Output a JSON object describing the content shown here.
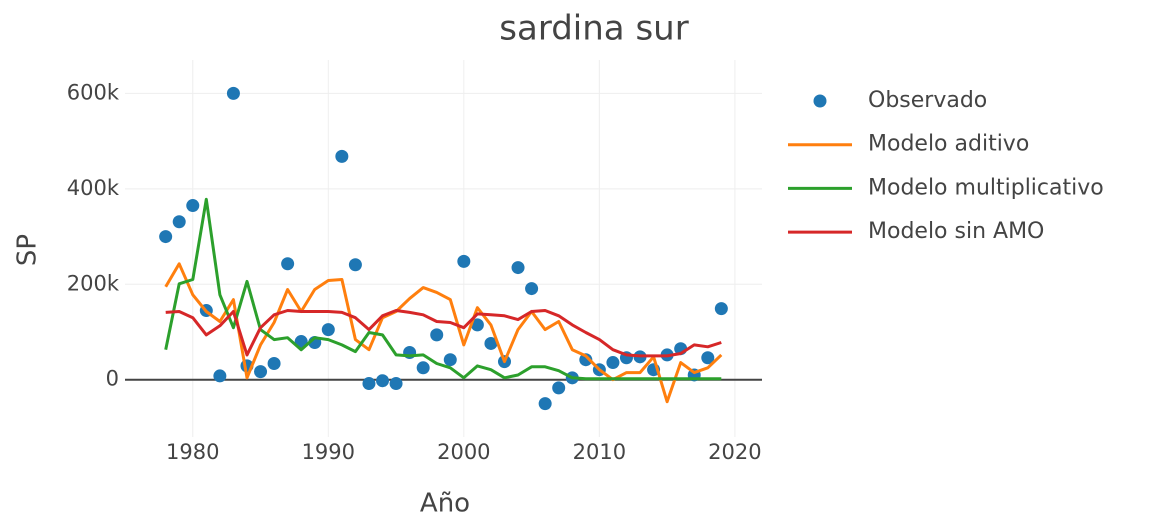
{
  "chart_data": {
    "type": "line",
    "title": "sardina sur",
    "x_label": "Año",
    "y_label": "SP",
    "x": [
      1978,
      1979,
      1980,
      1981,
      1982,
      1983,
      1984,
      1985,
      1986,
      1987,
      1988,
      1989,
      1990,
      1991,
      1992,
      1993,
      1994,
      1995,
      1996,
      1997,
      1998,
      1999,
      2000,
      2001,
      2002,
      2003,
      2004,
      2005,
      2006,
      2007,
      2008,
      2009,
      2010,
      2011,
      2012,
      2013,
      2014,
      2015,
      2016,
      2017,
      2018,
      2019
    ],
    "series": [
      {
        "name": "Observado",
        "color": "#1f77b4",
        "mode": "markers",
        "values": [
          300000,
          331000,
          365000,
          145000,
          8000,
          600000,
          29000,
          17000,
          34000,
          243000,
          80000,
          78000,
          105000,
          468000,
          241000,
          -8000,
          -2000,
          -8000,
          57000,
          25000,
          94000,
          42000,
          248000,
          115000,
          76000,
          38000,
          235000,
          191000,
          -50000,
          -17000,
          4000,
          42000,
          21000,
          36000,
          46000,
          48000,
          21000,
          52000,
          65000,
          10000,
          46000,
          149000
        ]
      },
      {
        "name": "Modelo aditivo",
        "color": "#ff7f0e",
        "mode": "lines",
        "values": [
          195000,
          243000,
          178000,
          143000,
          122000,
          168000,
          4000,
          73000,
          120000,
          189000,
          143000,
          189000,
          208000,
          210000,
          84000,
          63000,
          130000,
          143000,
          170000,
          193000,
          183000,
          168000,
          73000,
          151000,
          115000,
          38000,
          105000,
          143000,
          105000,
          122000,
          63000,
          50000,
          21000,
          0,
          15000,
          15000,
          48000,
          -46000,
          36000,
          15000,
          25000,
          52000
        ]
      },
      {
        "name": "Modelo multiplicativo",
        "color": "#2ca02c",
        "mode": "lines",
        "values": [
          63000,
          201000,
          210000,
          378000,
          178000,
          109000,
          206000,
          105000,
          84000,
          88000,
          63000,
          88000,
          84000,
          73000,
          59000,
          99000,
          94000,
          52000,
          50000,
          52000,
          34000,
          25000,
          4000,
          29000,
          21000,
          4000,
          10000,
          27000,
          27000,
          19000,
          4000,
          2000,
          2000,
          2000,
          2000,
          2000,
          2000,
          2000,
          2000,
          2000,
          2000,
          2000
        ]
      },
      {
        "name": "Modelo sin AMO",
        "color": "#d62728",
        "mode": "lines",
        "values": [
          141000,
          143000,
          130000,
          94000,
          113000,
          143000,
          52000,
          109000,
          136000,
          145000,
          143000,
          143000,
          143000,
          141000,
          130000,
          105000,
          134000,
          145000,
          141000,
          136000,
          122000,
          120000,
          109000,
          138000,
          136000,
          134000,
          126000,
          143000,
          145000,
          134000,
          115000,
          99000,
          84000,
          63000,
          52000,
          50000,
          50000,
          50000,
          55000,
          73000,
          69000,
          78000
        ]
      }
    ],
    "xlim": [
      1975,
      2022
    ],
    "ylim": [
      -120000,
      670000
    ],
    "xticks": [
      1980,
      1990,
      2000,
      2010,
      2020
    ],
    "yticks": [
      0,
      {
        "value": 200000,
        "label": "200k"
      },
      {
        "value": 400000,
        "label": "400k"
      },
      {
        "value": 600000,
        "label": "600k"
      }
    ],
    "grid": true,
    "legend": "right"
  }
}
